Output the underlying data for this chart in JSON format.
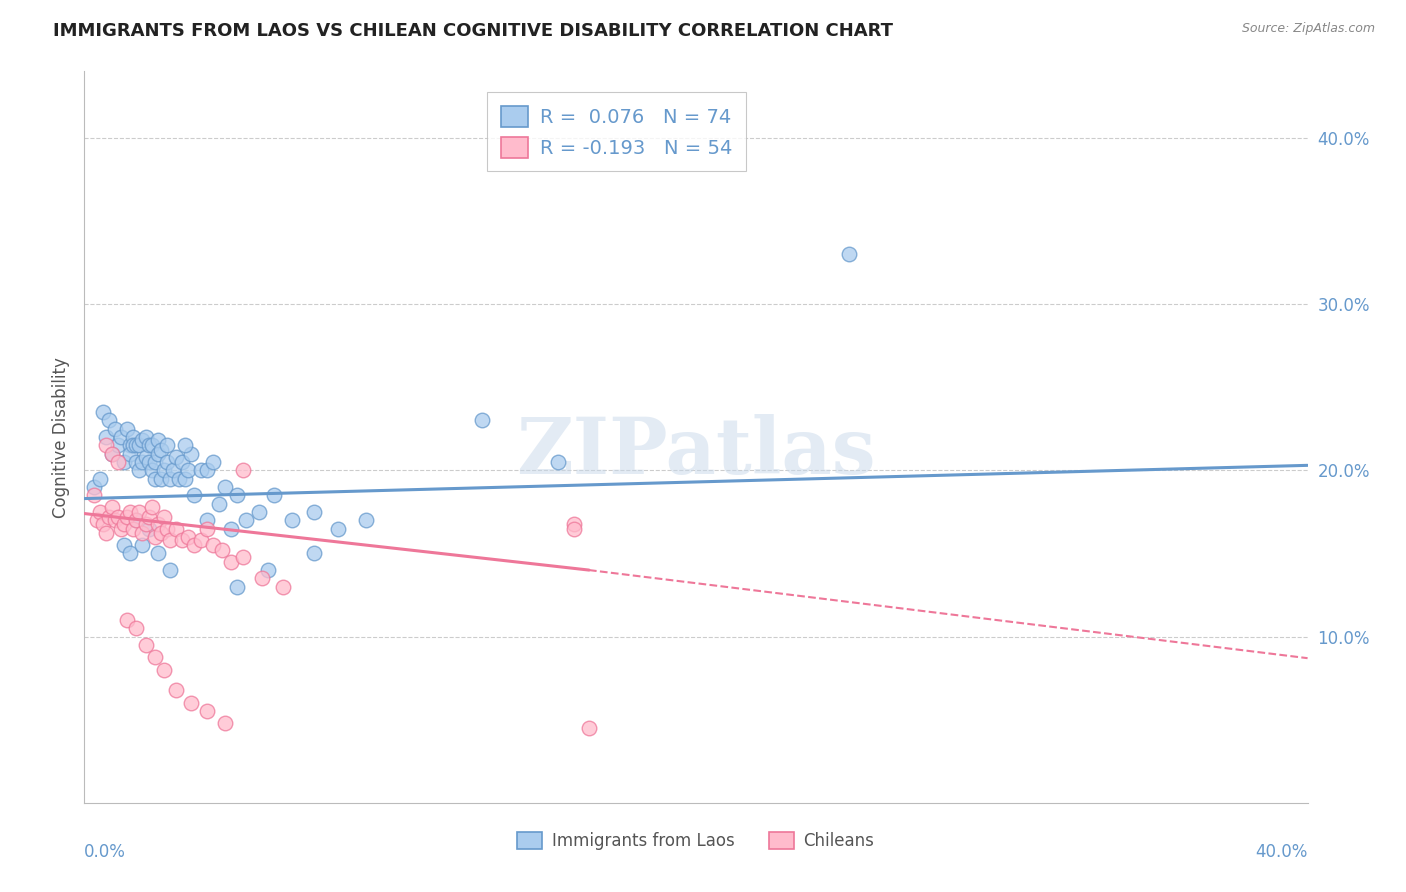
{
  "title": "IMMIGRANTS FROM LAOS VS CHILEAN COGNITIVE DISABILITY CORRELATION CHART",
  "source": "Source: ZipAtlas.com",
  "ylabel": "Cognitive Disability",
  "xlim": [
    0.0,
    0.4
  ],
  "ylim": [
    0.0,
    0.44
  ],
  "ytick_values": [
    0.1,
    0.2,
    0.3,
    0.4
  ],
  "xtick_values": [
    0.0,
    0.05,
    0.1,
    0.15,
    0.2,
    0.25,
    0.3,
    0.35,
    0.4
  ],
  "grid_color": "#cccccc",
  "background_color": "#ffffff",
  "blue_color": "#6699cc",
  "pink_color": "#ee7799",
  "blue_fill": "#aaccee",
  "pink_fill": "#ffbbcc",
  "blue_R": 0.076,
  "blue_N": 74,
  "pink_R": -0.193,
  "pink_N": 54,
  "watermark_text": "ZIPatlas",
  "legend_label_blue": "Immigrants from Laos",
  "legend_label_pink": "Chileans",
  "blue_line_x0": 0.0,
  "blue_line_y0": 0.183,
  "blue_line_x1": 0.4,
  "blue_line_y1": 0.203,
  "pink_line_solid_x0": 0.0,
  "pink_line_solid_y0": 0.174,
  "pink_line_solid_x1": 0.165,
  "pink_line_solid_y1": 0.14,
  "pink_line_dash_x1": 0.4,
  "pink_line_dash_y1": 0.087,
  "blue_scatter_x": [
    0.003,
    0.005,
    0.006,
    0.007,
    0.008,
    0.009,
    0.01,
    0.011,
    0.012,
    0.013,
    0.014,
    0.015,
    0.015,
    0.016,
    0.016,
    0.017,
    0.017,
    0.018,
    0.018,
    0.019,
    0.019,
    0.02,
    0.02,
    0.021,
    0.021,
    0.022,
    0.022,
    0.023,
    0.023,
    0.024,
    0.024,
    0.025,
    0.025,
    0.026,
    0.027,
    0.027,
    0.028,
    0.029,
    0.03,
    0.031,
    0.032,
    0.033,
    0.034,
    0.035,
    0.036,
    0.038,
    0.04,
    0.042,
    0.044,
    0.046,
    0.048,
    0.05,
    0.053,
    0.057,
    0.062,
    0.068,
    0.075,
    0.083,
    0.092,
    0.013,
    0.015,
    0.017,
    0.019,
    0.021,
    0.024,
    0.028,
    0.033,
    0.04,
    0.05,
    0.06,
    0.075,
    0.25,
    0.155,
    0.13
  ],
  "blue_scatter_y": [
    0.19,
    0.195,
    0.235,
    0.22,
    0.23,
    0.21,
    0.225,
    0.215,
    0.22,
    0.205,
    0.225,
    0.215,
    0.21,
    0.22,
    0.215,
    0.205,
    0.215,
    0.2,
    0.215,
    0.205,
    0.218,
    0.208,
    0.22,
    0.205,
    0.215,
    0.2,
    0.215,
    0.205,
    0.195,
    0.21,
    0.218,
    0.195,
    0.212,
    0.2,
    0.215,
    0.205,
    0.195,
    0.2,
    0.208,
    0.195,
    0.205,
    0.195,
    0.2,
    0.21,
    0.185,
    0.2,
    0.2,
    0.205,
    0.18,
    0.19,
    0.165,
    0.185,
    0.17,
    0.175,
    0.185,
    0.17,
    0.175,
    0.165,
    0.17,
    0.155,
    0.15,
    0.17,
    0.155,
    0.165,
    0.15,
    0.14,
    0.215,
    0.17,
    0.13,
    0.14,
    0.15,
    0.33,
    0.205,
    0.23
  ],
  "pink_scatter_x": [
    0.003,
    0.004,
    0.005,
    0.006,
    0.007,
    0.008,
    0.009,
    0.01,
    0.011,
    0.012,
    0.013,
    0.014,
    0.015,
    0.016,
    0.017,
    0.018,
    0.019,
    0.02,
    0.021,
    0.022,
    0.023,
    0.024,
    0.025,
    0.026,
    0.027,
    0.028,
    0.03,
    0.032,
    0.034,
    0.036,
    0.038,
    0.04,
    0.042,
    0.045,
    0.048,
    0.052,
    0.058,
    0.065,
    0.007,
    0.009,
    0.011,
    0.014,
    0.017,
    0.02,
    0.023,
    0.026,
    0.03,
    0.035,
    0.04,
    0.046,
    0.052,
    0.16,
    0.165,
    0.16
  ],
  "pink_scatter_y": [
    0.185,
    0.17,
    0.175,
    0.168,
    0.162,
    0.172,
    0.178,
    0.17,
    0.172,
    0.165,
    0.168,
    0.172,
    0.175,
    0.165,
    0.17,
    0.175,
    0.162,
    0.168,
    0.172,
    0.178,
    0.16,
    0.168,
    0.162,
    0.172,
    0.165,
    0.158,
    0.165,
    0.158,
    0.16,
    0.155,
    0.158,
    0.165,
    0.155,
    0.152,
    0.145,
    0.148,
    0.135,
    0.13,
    0.215,
    0.21,
    0.205,
    0.11,
    0.105,
    0.095,
    0.088,
    0.08,
    0.068,
    0.06,
    0.055,
    0.048,
    0.2,
    0.168,
    0.045,
    0.165
  ]
}
